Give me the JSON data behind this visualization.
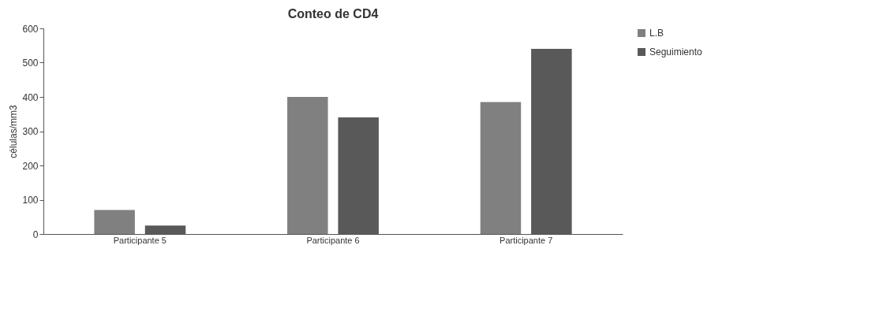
{
  "chart_data": {
    "type": "bar",
    "title": "Conteo de CD4",
    "ylabel": "células/mm3",
    "categories": [
      "Participante 5",
      "Participante 6",
      "Participante 7"
    ],
    "series": [
      {
        "name": "L.B",
        "color": "#808080",
        "values": [
          70,
          400,
          385
        ]
      },
      {
        "name": "Seguimiento",
        "color": "#595959",
        "values": [
          25,
          340,
          540
        ]
      }
    ],
    "ylim": [
      0,
      600
    ],
    "yticks": [
      0,
      100,
      200,
      300,
      400,
      500,
      600
    ],
    "grid": false,
    "legend": "right"
  }
}
